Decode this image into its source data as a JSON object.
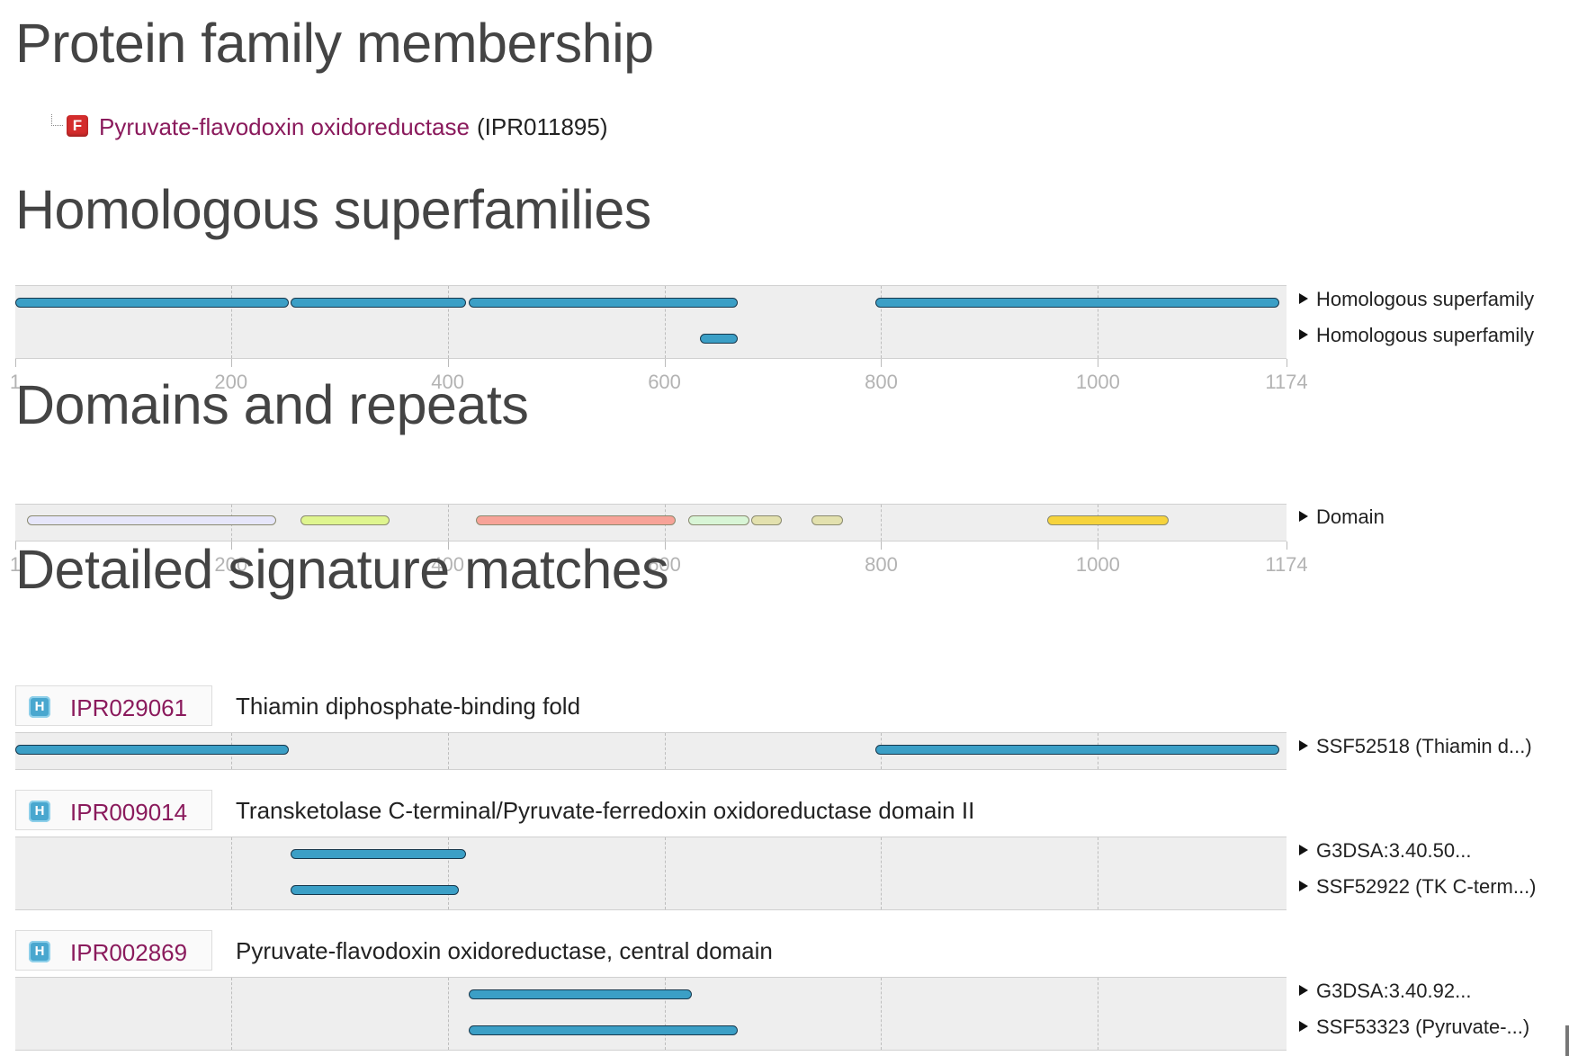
{
  "sections": {
    "family": "Protein family membership",
    "homologous": "Homologous superfamilies",
    "domains": "Domains and repeats",
    "detailed": "Detailed signature matches"
  },
  "family": {
    "badge": "F",
    "badge_color": "#d42c2c",
    "name": "Pyruvate-flavodoxin oxidoreductase",
    "accession": "(IPR011895)"
  },
  "axis": {
    "length": 1174,
    "ticks": [
      "1",
      "200",
      "400",
      "600",
      "800",
      "1000",
      "1174"
    ]
  },
  "homologous_rows": [
    {
      "label": "Homologous superfamily",
      "segments": [
        [
          1,
          253
        ],
        [
          255,
          417
        ],
        [
          419,
          668
        ],
        [
          795,
          1167
        ]
      ]
    },
    {
      "label": "Homologous superfamily",
      "segments": [
        [
          633,
          668
        ]
      ]
    }
  ],
  "domain_row": {
    "label": "Domain",
    "segments": [
      {
        "start": 12,
        "end": 242,
        "color": "#e6e6fa"
      },
      {
        "start": 264,
        "end": 346,
        "color": "#dff58f"
      },
      {
        "start": 426,
        "end": 610,
        "color": "#f7a398"
      },
      {
        "start": 622,
        "end": 678,
        "color": "#d8f5d6"
      },
      {
        "start": 680,
        "end": 708,
        "color": "#e3e1ae"
      },
      {
        "start": 736,
        "end": 765,
        "color": "#e3e1ae"
      },
      {
        "start": 953,
        "end": 1065,
        "color": "#f6d33c"
      }
    ]
  },
  "entries": [
    {
      "icon": "H",
      "accession": "IPR029061",
      "name": "Thiamin diphosphate-binding fold",
      "rows": [
        {
          "label": "SSF52518 (Thiamin d...)",
          "segments": [
            [
              1,
              253
            ],
            [
              795,
              1167
            ]
          ]
        }
      ]
    },
    {
      "icon": "H",
      "accession": "IPR009014",
      "name": "Transketolase C-terminal/Pyruvate-ferredoxin oxidoreductase domain II",
      "rows": [
        {
          "label": "G3DSA:3.40.50...",
          "segments": [
            [
              255,
              417
            ]
          ]
        },
        {
          "label": "SSF52922 (TK C-term...)",
          "segments": [
            [
              255,
              410
            ]
          ]
        }
      ]
    },
    {
      "icon": "H",
      "accession": "IPR002869",
      "name": "Pyruvate-flavodoxin oxidoreductase, central domain",
      "rows": [
        {
          "label": "G3DSA:3.40.92...",
          "segments": [
            [
              419,
              625
            ]
          ]
        },
        {
          "label": "SSF53323 (Pyruvate-...)",
          "segments": [
            [
              419,
              668
            ]
          ]
        }
      ]
    }
  ],
  "colors": {
    "match_bar": "#3b9fc6",
    "accent_link": "#8a1a5c"
  }
}
